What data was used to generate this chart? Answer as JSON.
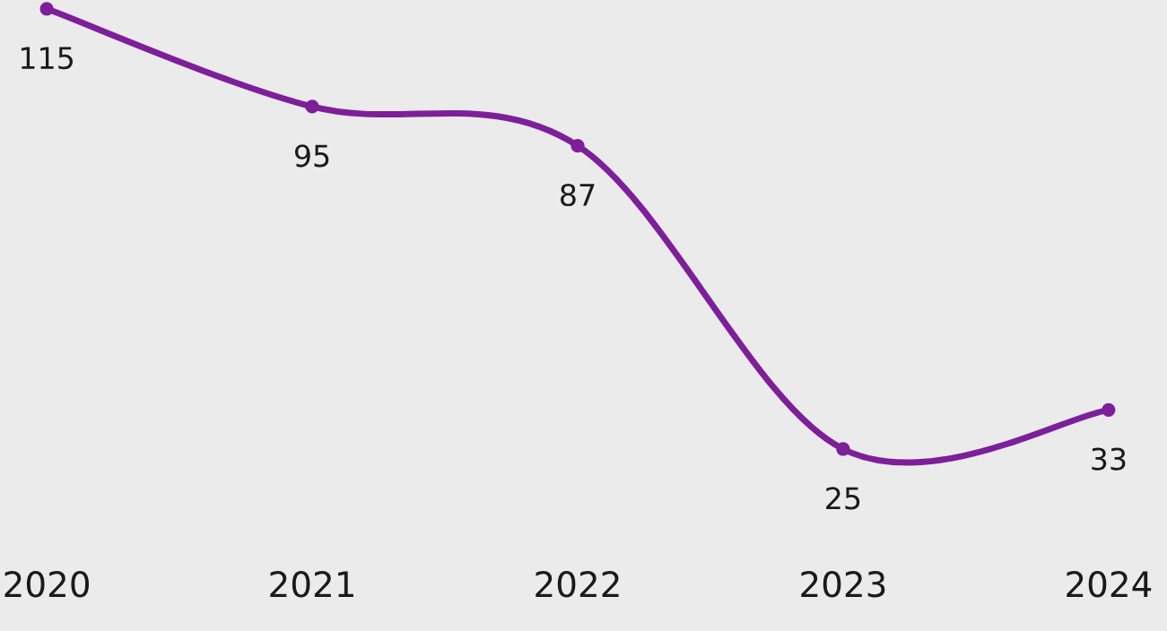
{
  "chart_data": {
    "type": "line",
    "categories": [
      "2020",
      "2021",
      "2022",
      "2023",
      "2024"
    ],
    "series": [
      {
        "color": "#7e1f9a",
        "values": [
          115,
          95,
          87,
          25,
          33
        ]
      }
    ],
    "data_labels": true,
    "marker": "circle",
    "line_style": "solid",
    "grid": false,
    "legend": false
  }
}
